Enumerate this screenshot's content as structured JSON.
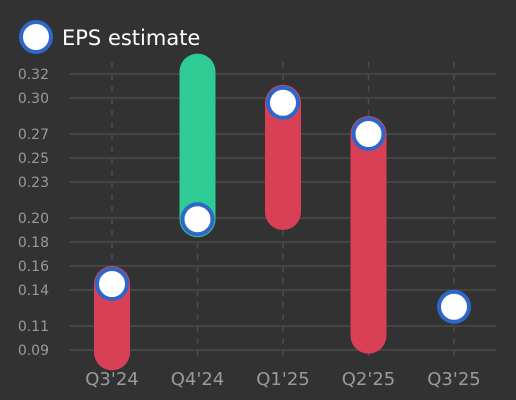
{
  "chart_data": {
    "type": "range-bar",
    "legend": {
      "label": "EPS estimate",
      "position": "top-left"
    },
    "categories": [
      "Q3'24",
      "Q4'24",
      "Q1'25",
      "Q2'25",
      "Q3'25"
    ],
    "y_ticks": [
      "0.09",
      "0.11",
      "0.14",
      "0.16",
      "0.18",
      "0.20",
      "0.23",
      "0.25",
      "0.27",
      "0.30",
      "0.32"
    ],
    "ylim": [
      0.08,
      0.33
    ],
    "grid": true,
    "ranges": [
      {
        "category": "Q3'24",
        "low": 0.088,
        "high": 0.145,
        "direction": "down"
      },
      {
        "category": "Q4'24",
        "low": 0.199,
        "high": 0.322,
        "direction": "up"
      },
      {
        "category": "Q1'25",
        "low": 0.205,
        "high": 0.296,
        "direction": "down"
      },
      {
        "category": "Q2'25",
        "low": 0.102,
        "high": 0.27,
        "direction": "down"
      },
      {
        "category": "Q3'25",
        "low": null,
        "high": null,
        "direction": null
      }
    ],
    "estimates": [
      0.145,
      0.199,
      0.296,
      0.27,
      0.126
    ],
    "colors": {
      "up": "#2ecc94",
      "down": "#d94055",
      "marker_fill": "#ffffff",
      "marker_stroke": "#2f66c9",
      "grid": "#4b4b4b",
      "tick_label": "#9a9a9a",
      "legend_text": "#ffffff",
      "background": "#323232"
    }
  }
}
